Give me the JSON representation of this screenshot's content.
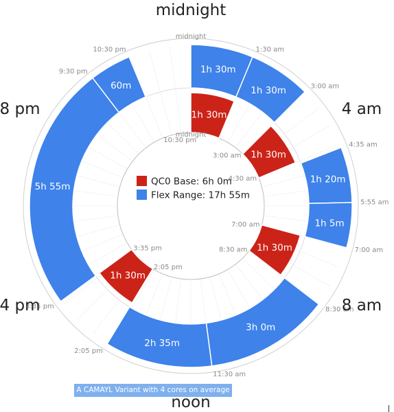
{
  "chart_data": {
    "type": "donut-schedule",
    "clock_labels": [
      {
        "text": "midnight",
        "hour": 0
      },
      {
        "text": "4 am",
        "hour": 4
      },
      {
        "text": "8 am",
        "hour": 8
      },
      {
        "text": "noon",
        "hour": 12
      },
      {
        "text": "4 pm",
        "hour": 16
      },
      {
        "text": "8 pm",
        "hour": 20
      }
    ],
    "outer_ring": {
      "segments": [
        {
          "start": "1:30 am",
          "end": "3:00 am",
          "label": "1h 30m",
          "kind": "flex"
        },
        {
          "start": "3:00 am",
          "end": "4:35 am",
          "label": "",
          "kind": "gap"
        },
        {
          "start": "4:35 am",
          "end": "5:55 am",
          "label": "1h 20m",
          "kind": "flex"
        },
        {
          "start": "5:55 am",
          "end": "7:00 am",
          "label": "1h 5m",
          "kind": "flex"
        },
        {
          "start": "7:00 am",
          "end": "8:30 am",
          "label": "",
          "kind": "gap"
        },
        {
          "start": "8:30 am",
          "end": "11:30 am",
          "label": "3h 0m",
          "kind": "flex"
        },
        {
          "start": "11:30 am",
          "end": "2:05 pm",
          "label": "2h 35m",
          "kind": "flex"
        },
        {
          "start": "2:05 pm",
          "end": "3:35 pm",
          "label": "",
          "kind": "gap"
        },
        {
          "start": "3:35 pm",
          "end": "9:30 pm",
          "label": "5h 55m",
          "kind": "flex"
        },
        {
          "start": "9:30 pm",
          "end": "10:30 pm",
          "label": "60m",
          "kind": "flex"
        },
        {
          "start": "10:30 pm",
          "end": "midnight",
          "label": "",
          "kind": "gap"
        },
        {
          "start": "midnight",
          "end": "1:30 am",
          "label": "1h 30m",
          "kind": "flex"
        }
      ],
      "tick_labels": [
        {
          "text": "midnight",
          "hour": 0
        },
        {
          "text": "1:30 am",
          "hour": 1.5
        },
        {
          "text": "3:00 am",
          "hour": 3
        },
        {
          "text": "4:35 am",
          "hour": 4.583
        },
        {
          "text": "5:55 am",
          "hour": 5.917
        },
        {
          "text": "7:00 am",
          "hour": 7
        },
        {
          "text": "8:30 am",
          "hour": 8.5
        },
        {
          "text": "11:30 am",
          "hour": 11.5
        },
        {
          "text": "2:05 pm",
          "hour": 14.083
        },
        {
          "text": "3:35 pm",
          "hour": 15.583
        },
        {
          "text": "9:30 pm",
          "hour": 21.5
        },
        {
          "text": "10:30 pm",
          "hour": 22.5
        }
      ]
    },
    "inner_ring": {
      "segments": [
        {
          "start": "midnight",
          "end": "1:30 am",
          "label": "1h 30m",
          "kind": "base"
        },
        {
          "start": "3:00 am",
          "end": "4:30 am",
          "label": "1h 30m",
          "kind": "base"
        },
        {
          "start": "7:00 am",
          "end": "8:30 am",
          "label": "1h 30m",
          "kind": "base"
        },
        {
          "start": "2:05 pm",
          "end": "3:35 pm",
          "label": "1h 30m",
          "kind": "base"
        }
      ],
      "tick_labels": [
        {
          "text": "midnight",
          "hour": 0
        },
        {
          "text": "3:00 am",
          "hour": 3
        },
        {
          "text": "4:30 am",
          "hour": 4.5
        },
        {
          "text": "7:00 am",
          "hour": 7
        },
        {
          "text": "8:30 am",
          "hour": 8.5
        },
        {
          "text": "2:05 pm",
          "hour": 14.083
        },
        {
          "text": "3:35 pm",
          "hour": 15.583
        },
        {
          "text": "10:30 pm",
          "hour": 22.5
        }
      ]
    },
    "legend": [
      {
        "label": "QC0 Base: 6h 0m",
        "color": "#cc2318"
      },
      {
        "label": "Flex Range: 17h 55m",
        "color": "#3e82ea"
      }
    ],
    "colors": {
      "base": "#cc2318",
      "flex": "#3e82ea",
      "stroke": "#ffffff"
    }
  },
  "caption": "A CAMAYL Variant with 4 cores on average"
}
